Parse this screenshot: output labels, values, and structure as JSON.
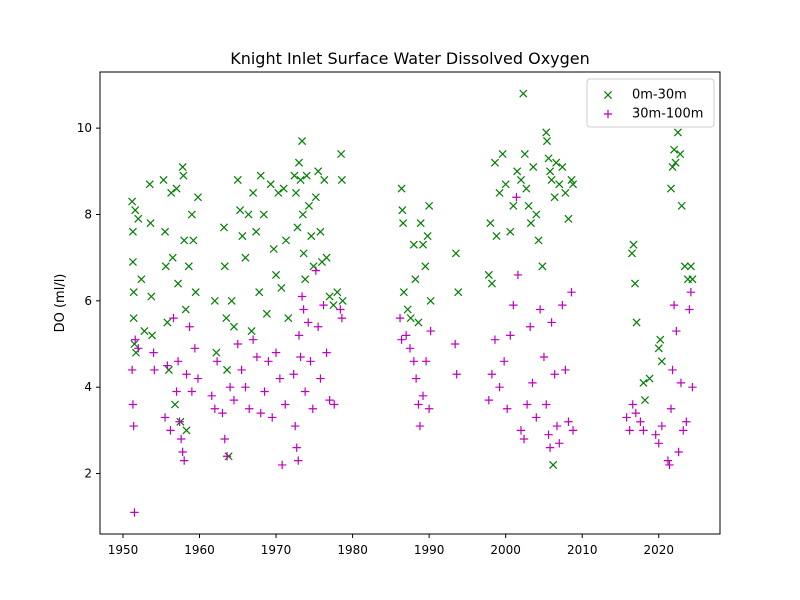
{
  "chart_data": {
    "type": "scatter",
    "title": "Knight Inlet Surface Water Dissolved Oxygen",
    "xlabel": "",
    "ylabel": "DO (ml/l)",
    "xlim": [
      1947,
      2028
    ],
    "ylim": [
      0.6,
      11.3
    ],
    "xticks": [
      1950,
      1960,
      1970,
      1980,
      1990,
      2000,
      2010,
      2020
    ],
    "yticks": [
      2,
      4,
      6,
      8,
      10
    ],
    "grid": false,
    "legend_position": "top-right",
    "colors": {
      "shallow": "#007f00",
      "deep": "#bf00bf"
    },
    "series": [
      {
        "name": "0m-30m",
        "marker": "x",
        "points": [
          [
            1951.2,
            8.3
          ],
          [
            1951.3,
            7.6
          ],
          [
            1951.3,
            6.9
          ],
          [
            1951.4,
            6.2
          ],
          [
            1951.4,
            5.6
          ],
          [
            1951.5,
            5.0
          ],
          [
            1951.6,
            8.1
          ],
          [
            1951.7,
            4.8
          ],
          [
            1952.0,
            7.9
          ],
          [
            1952.4,
            6.5
          ],
          [
            1952.8,
            5.3
          ],
          [
            1953.5,
            8.7
          ],
          [
            1953.6,
            7.8
          ],
          [
            1953.7,
            6.1
          ],
          [
            1953.8,
            5.2
          ],
          [
            1955.3,
            8.8
          ],
          [
            1955.5,
            7.6
          ],
          [
            1955.6,
            6.8
          ],
          [
            1955.8,
            5.5
          ],
          [
            1956.0,
            4.4
          ],
          [
            1956.3,
            8.5
          ],
          [
            1956.5,
            7.0
          ],
          [
            1956.8,
            3.6
          ],
          [
            1957.0,
            8.6
          ],
          [
            1957.2,
            6.4
          ],
          [
            1957.5,
            3.2
          ],
          [
            1957.8,
            9.1
          ],
          [
            1957.9,
            8.9
          ],
          [
            1958.0,
            7.4
          ],
          [
            1958.2,
            5.8
          ],
          [
            1958.3,
            3.0
          ],
          [
            1958.6,
            6.8
          ],
          [
            1959.0,
            8.0
          ],
          [
            1959.2,
            7.4
          ],
          [
            1959.5,
            6.2
          ],
          [
            1959.8,
            8.4
          ],
          [
            1962.0,
            6.0
          ],
          [
            1962.2,
            4.8
          ],
          [
            1963.2,
            7.7
          ],
          [
            1963.3,
            6.8
          ],
          [
            1963.5,
            5.6
          ],
          [
            1963.6,
            4.4
          ],
          [
            1963.8,
            2.4
          ],
          [
            1964.2,
            6.0
          ],
          [
            1964.5,
            5.4
          ],
          [
            1965.0,
            8.8
          ],
          [
            1965.3,
            8.1
          ],
          [
            1965.6,
            7.5
          ],
          [
            1966.0,
            7.0
          ],
          [
            1966.4,
            8.0
          ],
          [
            1966.8,
            5.3
          ],
          [
            1967.0,
            8.5
          ],
          [
            1967.4,
            7.6
          ],
          [
            1967.8,
            6.2
          ],
          [
            1968.0,
            8.9
          ],
          [
            1968.4,
            8.0
          ],
          [
            1968.8,
            5.7
          ],
          [
            1969.3,
            8.7
          ],
          [
            1969.7,
            7.2
          ],
          [
            1970.0,
            6.6
          ],
          [
            1970.3,
            8.5
          ],
          [
            1970.7,
            6.3
          ],
          [
            1971.0,
            8.6
          ],
          [
            1971.3,
            7.4
          ],
          [
            1971.6,
            5.6
          ],
          [
            1972.4,
            8.9
          ],
          [
            1972.6,
            8.5
          ],
          [
            1972.8,
            7.7
          ],
          [
            1973.0,
            9.2
          ],
          [
            1973.2,
            8.8
          ],
          [
            1973.4,
            9.7
          ],
          [
            1973.5,
            8.0
          ],
          [
            1973.6,
            7.1
          ],
          [
            1973.8,
            6.5
          ],
          [
            1974.0,
            8.9
          ],
          [
            1974.3,
            8.2
          ],
          [
            1974.6,
            7.5
          ],
          [
            1974.9,
            6.8
          ],
          [
            1975.2,
            8.4
          ],
          [
            1975.5,
            9.0
          ],
          [
            1975.8,
            7.6
          ],
          [
            1976.0,
            6.9
          ],
          [
            1976.3,
            8.8
          ],
          [
            1976.6,
            7.0
          ],
          [
            1977.0,
            6.1
          ],
          [
            1977.5,
            5.9
          ],
          [
            1978.0,
            6.2
          ],
          [
            1978.5,
            9.4
          ],
          [
            1978.6,
            8.8
          ],
          [
            1978.7,
            6.0
          ],
          [
            1986.4,
            8.6
          ],
          [
            1986.5,
            8.1
          ],
          [
            1986.6,
            7.8
          ],
          [
            1986.7,
            6.2
          ],
          [
            1987.2,
            5.8
          ],
          [
            1987.6,
            5.6
          ],
          [
            1988.0,
            7.3
          ],
          [
            1988.2,
            6.5
          ],
          [
            1988.6,
            5.5
          ],
          [
            1988.9,
            7.8
          ],
          [
            1989.2,
            7.3
          ],
          [
            1989.5,
            6.8
          ],
          [
            1989.8,
            7.5
          ],
          [
            1990.0,
            8.2
          ],
          [
            1990.2,
            6.0
          ],
          [
            1993.5,
            7.1
          ],
          [
            1993.8,
            6.2
          ],
          [
            1997.8,
            6.6
          ],
          [
            1998.0,
            7.8
          ],
          [
            1998.2,
            6.4
          ],
          [
            1998.6,
            9.2
          ],
          [
            1998.8,
            7.5
          ],
          [
            1999.2,
            8.5
          ],
          [
            1999.6,
            9.4
          ],
          [
            2000.0,
            8.7
          ],
          [
            2000.6,
            7.6
          ],
          [
            2001.0,
            8.2
          ],
          [
            2001.5,
            9.0
          ],
          [
            2002.0,
            8.8
          ],
          [
            2002.3,
            10.8
          ],
          [
            2002.5,
            9.4
          ],
          [
            2002.7,
            8.6
          ],
          [
            2003.0,
            8.2
          ],
          [
            2003.3,
            7.8
          ],
          [
            2003.6,
            9.1
          ],
          [
            2004.0,
            8.0
          ],
          [
            2004.3,
            7.4
          ],
          [
            2004.8,
            6.8
          ],
          [
            2005.3,
            9.9
          ],
          [
            2005.4,
            9.7
          ],
          [
            2005.6,
            9.3
          ],
          [
            2005.8,
            9.0
          ],
          [
            2006.0,
            8.8
          ],
          [
            2006.2,
            2.2
          ],
          [
            2006.4,
            8.4
          ],
          [
            2006.6,
            9.2
          ],
          [
            2007.0,
            8.7
          ],
          [
            2007.4,
            9.1
          ],
          [
            2007.8,
            8.5
          ],
          [
            2008.2,
            7.9
          ],
          [
            2008.6,
            8.8
          ],
          [
            2008.8,
            8.7
          ],
          [
            2016.5,
            7.1
          ],
          [
            2016.7,
            7.3
          ],
          [
            2016.9,
            6.4
          ],
          [
            2017.1,
            5.5
          ],
          [
            2018.0,
            4.1
          ],
          [
            2018.2,
            3.7
          ],
          [
            2018.8,
            4.2
          ],
          [
            2020.0,
            4.9
          ],
          [
            2020.2,
            5.1
          ],
          [
            2020.4,
            4.6
          ],
          [
            2021.6,
            8.6
          ],
          [
            2021.8,
            9.1
          ],
          [
            2022.0,
            9.5
          ],
          [
            2022.2,
            9.2
          ],
          [
            2022.5,
            9.9
          ],
          [
            2022.8,
            9.4
          ],
          [
            2023.0,
            8.2
          ],
          [
            2023.4,
            6.8
          ],
          [
            2023.8,
            6.5
          ],
          [
            2024.2,
            6.8
          ],
          [
            2024.4,
            6.5
          ]
        ]
      },
      {
        "name": "30m-100m",
        "marker": "+",
        "points": [
          [
            1951.2,
            4.4
          ],
          [
            1951.3,
            3.6
          ],
          [
            1951.4,
            3.1
          ],
          [
            1951.5,
            1.1
          ],
          [
            1951.6,
            5.1
          ],
          [
            1952.0,
            4.9
          ],
          [
            1954.0,
            4.8
          ],
          [
            1954.1,
            4.4
          ],
          [
            1955.5,
            3.3
          ],
          [
            1955.8,
            4.5
          ],
          [
            1956.2,
            3.0
          ],
          [
            1956.6,
            5.6
          ],
          [
            1957.0,
            3.9
          ],
          [
            1957.2,
            4.6
          ],
          [
            1957.4,
            3.2
          ],
          [
            1957.6,
            2.8
          ],
          [
            1957.8,
            2.5
          ],
          [
            1958.0,
            2.3
          ],
          [
            1958.3,
            4.3
          ],
          [
            1958.7,
            5.4
          ],
          [
            1959.0,
            3.9
          ],
          [
            1959.4,
            4.9
          ],
          [
            1959.8,
            4.2
          ],
          [
            1961.6,
            3.8
          ],
          [
            1962.0,
            3.5
          ],
          [
            1962.3,
            4.6
          ],
          [
            1963.0,
            3.4
          ],
          [
            1963.3,
            2.8
          ],
          [
            1963.6,
            2.4
          ],
          [
            1964.0,
            4.0
          ],
          [
            1964.5,
            3.7
          ],
          [
            1965.0,
            5.0
          ],
          [
            1965.5,
            4.4
          ],
          [
            1966.0,
            4.0
          ],
          [
            1966.5,
            3.5
          ],
          [
            1967.0,
            5.1
          ],
          [
            1967.5,
            4.7
          ],
          [
            1968.0,
            3.4
          ],
          [
            1968.5,
            3.9
          ],
          [
            1969.0,
            4.6
          ],
          [
            1969.5,
            3.3
          ],
          [
            1970.0,
            4.8
          ],
          [
            1970.5,
            4.2
          ],
          [
            1970.8,
            2.2
          ],
          [
            1971.2,
            3.6
          ],
          [
            1972.3,
            4.3
          ],
          [
            1972.5,
            3.1
          ],
          [
            1972.7,
            2.6
          ],
          [
            1972.9,
            2.3
          ],
          [
            1973.0,
            5.2
          ],
          [
            1973.2,
            4.7
          ],
          [
            1973.4,
            6.1
          ],
          [
            1973.6,
            5.8
          ],
          [
            1973.8,
            3.9
          ],
          [
            1974.2,
            5.5
          ],
          [
            1974.5,
            4.6
          ],
          [
            1974.8,
            3.5
          ],
          [
            1975.2,
            6.7
          ],
          [
            1975.5,
            5.4
          ],
          [
            1975.8,
            4.2
          ],
          [
            1976.2,
            5.9
          ],
          [
            1976.6,
            4.8
          ],
          [
            1977.0,
            3.7
          ],
          [
            1977.6,
            3.6
          ],
          [
            1978.4,
            5.8
          ],
          [
            1978.6,
            5.6
          ],
          [
            1986.2,
            5.6
          ],
          [
            1986.4,
            5.1
          ],
          [
            1987.0,
            5.2
          ],
          [
            1987.5,
            4.9
          ],
          [
            1988.0,
            4.6
          ],
          [
            1988.3,
            4.2
          ],
          [
            1988.6,
            3.6
          ],
          [
            1988.8,
            3.1
          ],
          [
            1989.2,
            3.8
          ],
          [
            1989.6,
            4.6
          ],
          [
            1990.0,
            3.5
          ],
          [
            1990.2,
            5.3
          ],
          [
            1993.4,
            5.0
          ],
          [
            1993.6,
            4.3
          ],
          [
            1997.8,
            3.7
          ],
          [
            1998.2,
            4.3
          ],
          [
            1998.6,
            5.1
          ],
          [
            1999.2,
            4.0
          ],
          [
            1999.8,
            4.6
          ],
          [
            2000.2,
            3.5
          ],
          [
            2000.6,
            5.2
          ],
          [
            2001.0,
            5.9
          ],
          [
            2001.4,
            8.4
          ],
          [
            2001.6,
            6.6
          ],
          [
            2002.0,
            3.0
          ],
          [
            2002.4,
            2.8
          ],
          [
            2002.8,
            3.6
          ],
          [
            2003.2,
            5.4
          ],
          [
            2003.5,
            4.1
          ],
          [
            2004.0,
            3.3
          ],
          [
            2004.5,
            5.8
          ],
          [
            2005.0,
            4.7
          ],
          [
            2005.3,
            3.6
          ],
          [
            2005.6,
            2.9
          ],
          [
            2005.8,
            2.6
          ],
          [
            2006.0,
            5.5
          ],
          [
            2006.4,
            4.3
          ],
          [
            2006.7,
            3.1
          ],
          [
            2007.0,
            2.7
          ],
          [
            2007.4,
            5.9
          ],
          [
            2007.8,
            4.4
          ],
          [
            2008.2,
            3.2
          ],
          [
            2008.6,
            6.2
          ],
          [
            2008.8,
            3.0
          ],
          [
            2015.8,
            3.3
          ],
          [
            2016.2,
            3.0
          ],
          [
            2016.6,
            3.6
          ],
          [
            2017.0,
            3.4
          ],
          [
            2017.6,
            3.2
          ],
          [
            2018.0,
            3.0
          ],
          [
            2019.6,
            2.9
          ],
          [
            2020.0,
            2.7
          ],
          [
            2020.4,
            3.1
          ],
          [
            2021.2,
            2.3
          ],
          [
            2021.4,
            2.2
          ],
          [
            2021.6,
            3.5
          ],
          [
            2021.8,
            4.4
          ],
          [
            2022.0,
            5.9
          ],
          [
            2022.3,
            5.3
          ],
          [
            2022.6,
            2.5
          ],
          [
            2022.9,
            4.1
          ],
          [
            2023.2,
            3.0
          ],
          [
            2023.6,
            3.2
          ],
          [
            2024.0,
            5.8
          ],
          [
            2024.2,
            6.2
          ],
          [
            2024.4,
            4.0
          ]
        ]
      }
    ]
  }
}
